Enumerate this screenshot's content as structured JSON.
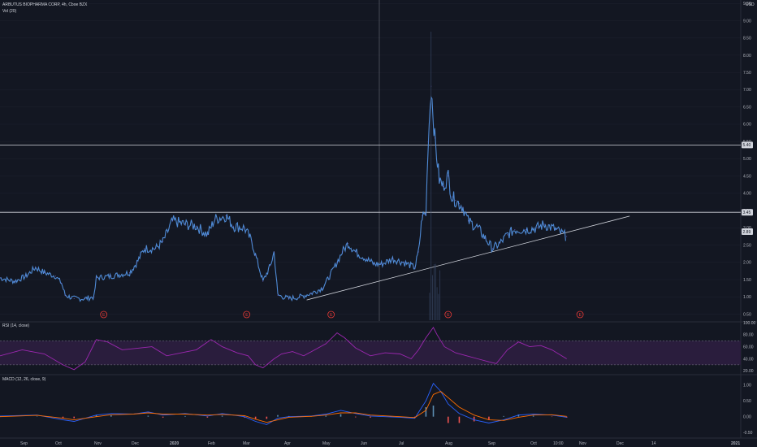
{
  "header": {
    "symbol": "ARBUTUS BIOPHARMA CORP, 4h, Cboe BZX",
    "volume_indicator": "Vol (20)",
    "rsi_indicator": "RSI (14, close)",
    "macd_indicator": "MACD (12, 26, close, 9)"
  },
  "currency_label": "USD",
  "colors": {
    "background": "#131722",
    "grid": "#1e2230",
    "candle": "#4f8bd6",
    "candle_alt": "#7b5fcf",
    "rsi": "#9c27b0",
    "rsi_band": "#2a1d3d",
    "macd_line": "#2962ff",
    "signal_line": "#ff6d00",
    "hist_pos": "#5d8fb3",
    "hist_neg": "#ef5350",
    "horizontal_line": "#d1d4dc",
    "earnings": "#e53935"
  },
  "chart_data": [
    {
      "type": "line",
      "name": "price",
      "ylim": [
        0.3,
        9.6
      ],
      "y_ticks": [
        "9.50",
        "9.00",
        "8.50",
        "8.00",
        "7.50",
        "7.00",
        "6.50",
        "6.00",
        "5.50",
        "5.00",
        "4.50",
        "4.00",
        "3.50",
        "3.00",
        "2.50",
        "2.00",
        "1.50",
        "1.00",
        "0.50"
      ],
      "x_tick_labels": [
        "Sep",
        "Oct",
        "Nov",
        "Dec",
        "2020",
        "Feb",
        "Mar",
        "Apr",
        "May",
        "Jun",
        "Jul",
        "Aug",
        "Sep",
        "Oct",
        "10:00",
        "Nov",
        "Dec",
        "14",
        "2021"
      ],
      "price_labels": [
        "5.40",
        "3.45",
        "2.89"
      ],
      "horizontal_levels": [
        5.4,
        3.45
      ],
      "trendline": [
        [
          0.414,
          0.91
        ],
        [
          0.85,
          3.34
        ]
      ],
      "earnings_marker_label": "E",
      "earnings_positions": [
        0.14,
        0.333,
        0.447,
        0.605,
        0.783
      ],
      "price_series": [
        [
          0.0,
          1.55
        ],
        [
          0.02,
          1.45
        ],
        [
          0.035,
          1.6
        ],
        [
          0.048,
          1.85
        ],
        [
          0.06,
          1.7
        ],
        [
          0.075,
          1.6
        ],
        [
          0.083,
          1.4
        ],
        [
          0.088,
          1.05
        ],
        [
          0.1,
          0.95
        ],
        [
          0.115,
          0.95
        ],
        [
          0.127,
          1.0
        ],
        [
          0.13,
          1.55
        ],
        [
          0.15,
          1.6
        ],
        [
          0.175,
          1.7
        ],
        [
          0.185,
          2.0
        ],
        [
          0.195,
          2.4
        ],
        [
          0.21,
          2.4
        ],
        [
          0.22,
          2.6
        ],
        [
          0.233,
          3.2
        ],
        [
          0.25,
          3.1
        ],
        [
          0.265,
          3.05
        ],
        [
          0.28,
          2.8
        ],
        [
          0.29,
          3.25
        ],
        [
          0.305,
          3.35
        ],
        [
          0.315,
          3.05
        ],
        [
          0.33,
          3.0
        ],
        [
          0.34,
          2.6
        ],
        [
          0.345,
          2.2
        ],
        [
          0.355,
          1.45
        ],
        [
          0.365,
          1.9
        ],
        [
          0.37,
          2.3
        ],
        [
          0.375,
          1.05
        ],
        [
          0.39,
          0.95
        ],
        [
          0.405,
          1.0
        ],
        [
          0.42,
          1.1
        ],
        [
          0.435,
          1.25
        ],
        [
          0.445,
          1.6
        ],
        [
          0.455,
          2.0
        ],
        [
          0.462,
          2.3
        ],
        [
          0.47,
          2.55
        ],
        [
          0.48,
          2.3
        ],
        [
          0.495,
          2.1
        ],
        [
          0.505,
          1.95
        ],
        [
          0.515,
          1.95
        ],
        [
          0.53,
          2.1
        ],
        [
          0.545,
          2.0
        ],
        [
          0.56,
          1.85
        ],
        [
          0.565,
          2.3
        ],
        [
          0.57,
          3.35
        ],
        [
          0.575,
          3.4
        ],
        [
          0.578,
          5.5
        ],
        [
          0.582,
          7.1
        ],
        [
          0.587,
          5.6
        ],
        [
          0.593,
          4.4
        ],
        [
          0.598,
          4.2
        ],
        [
          0.605,
          4.5
        ],
        [
          0.61,
          3.9
        ],
        [
          0.615,
          3.8
        ],
        [
          0.62,
          3.7
        ],
        [
          0.625,
          3.6
        ],
        [
          0.632,
          3.2
        ],
        [
          0.645,
          3.0
        ],
        [
          0.655,
          2.7
        ],
        [
          0.665,
          2.4
        ],
        [
          0.675,
          2.55
        ],
        [
          0.685,
          2.8
        ],
        [
          0.695,
          2.95
        ],
        [
          0.71,
          2.95
        ],
        [
          0.725,
          3.0
        ],
        [
          0.735,
          3.1
        ],
        [
          0.75,
          2.95
        ],
        [
          0.765,
          2.75
        ]
      ]
    },
    {
      "type": "line",
      "name": "RSI",
      "ylim": [
        15,
        100
      ],
      "y_ticks": [
        "100.00",
        "80.00",
        "60.00",
        "40.00",
        "20.00"
      ],
      "bands": [
        70,
        30
      ],
      "series": [
        [
          0.0,
          45
        ],
        [
          0.03,
          55
        ],
        [
          0.06,
          48
        ],
        [
          0.085,
          30
        ],
        [
          0.1,
          22
        ],
        [
          0.115,
          35
        ],
        [
          0.13,
          72
        ],
        [
          0.145,
          68
        ],
        [
          0.165,
          55
        ],
        [
          0.19,
          58
        ],
        [
          0.205,
          60
        ],
        [
          0.225,
          45
        ],
        [
          0.245,
          50
        ],
        [
          0.265,
          55
        ],
        [
          0.285,
          72
        ],
        [
          0.3,
          60
        ],
        [
          0.32,
          50
        ],
        [
          0.335,
          45
        ],
        [
          0.345,
          30
        ],
        [
          0.355,
          25
        ],
        [
          0.37,
          40
        ],
        [
          0.38,
          48
        ],
        [
          0.395,
          52
        ],
        [
          0.41,
          45
        ],
        [
          0.425,
          55
        ],
        [
          0.44,
          65
        ],
        [
          0.455,
          83
        ],
        [
          0.465,
          75
        ],
        [
          0.48,
          58
        ],
        [
          0.5,
          45
        ],
        [
          0.52,
          50
        ],
        [
          0.54,
          48
        ],
        [
          0.555,
          40
        ],
        [
          0.565,
          55
        ],
        [
          0.575,
          75
        ],
        [
          0.585,
          92
        ],
        [
          0.59,
          80
        ],
        [
          0.6,
          60
        ],
        [
          0.615,
          50
        ],
        [
          0.63,
          45
        ],
        [
          0.645,
          40
        ],
        [
          0.66,
          35
        ],
        [
          0.67,
          32
        ],
        [
          0.685,
          55
        ],
        [
          0.7,
          68
        ],
        [
          0.715,
          60
        ],
        [
          0.73,
          62
        ],
        [
          0.745,
          55
        ],
        [
          0.765,
          40
        ]
      ]
    },
    {
      "type": "line",
      "name": "MACD",
      "ylim": [
        -0.65,
        1.3
      ],
      "y_ticks": [
        "1.00",
        "0.50",
        "0.00",
        "-0.50"
      ],
      "macd_series": [
        [
          0.0,
          0.02
        ],
        [
          0.05,
          0.05
        ],
        [
          0.085,
          -0.1
        ],
        [
          0.1,
          -0.15
        ],
        [
          0.13,
          0.05
        ],
        [
          0.15,
          0.1
        ],
        [
          0.18,
          0.08
        ],
        [
          0.2,
          0.15
        ],
        [
          0.22,
          0.05
        ],
        [
          0.25,
          0.1
        ],
        [
          0.28,
          0.02
        ],
        [
          0.3,
          0.1
        ],
        [
          0.33,
          0.0
        ],
        [
          0.345,
          -0.15
        ],
        [
          0.36,
          -0.25
        ],
        [
          0.375,
          -0.05
        ],
        [
          0.39,
          0.0
        ],
        [
          0.42,
          0.02
        ],
        [
          0.44,
          0.08
        ],
        [
          0.46,
          0.2
        ],
        [
          0.48,
          0.1
        ],
        [
          0.5,
          0.02
        ],
        [
          0.54,
          -0.02
        ],
        [
          0.56,
          -0.05
        ],
        [
          0.575,
          0.5
        ],
        [
          0.585,
          1.05
        ],
        [
          0.595,
          0.8
        ],
        [
          0.605,
          0.4
        ],
        [
          0.62,
          0.1
        ],
        [
          0.64,
          -0.1
        ],
        [
          0.66,
          -0.2
        ],
        [
          0.68,
          -0.1
        ],
        [
          0.7,
          0.05
        ],
        [
          0.72,
          0.08
        ],
        [
          0.745,
          0.05
        ],
        [
          0.765,
          -0.02
        ]
      ],
      "signal_series": [
        [
          0.0,
          0.0
        ],
        [
          0.05,
          0.04
        ],
        [
          0.085,
          -0.05
        ],
        [
          0.1,
          -0.1
        ],
        [
          0.13,
          0.0
        ],
        [
          0.15,
          0.06
        ],
        [
          0.18,
          0.08
        ],
        [
          0.2,
          0.12
        ],
        [
          0.22,
          0.08
        ],
        [
          0.25,
          0.08
        ],
        [
          0.28,
          0.05
        ],
        [
          0.3,
          0.07
        ],
        [
          0.33,
          0.03
        ],
        [
          0.345,
          -0.08
        ],
        [
          0.36,
          -0.18
        ],
        [
          0.375,
          -0.1
        ],
        [
          0.39,
          -0.02
        ],
        [
          0.42,
          0.01
        ],
        [
          0.44,
          0.05
        ],
        [
          0.46,
          0.12
        ],
        [
          0.48,
          0.12
        ],
        [
          0.5,
          0.05
        ],
        [
          0.54,
          0.0
        ],
        [
          0.56,
          -0.03
        ],
        [
          0.575,
          0.2
        ],
        [
          0.585,
          0.7
        ],
        [
          0.595,
          0.8
        ],
        [
          0.605,
          0.6
        ],
        [
          0.62,
          0.3
        ],
        [
          0.64,
          0.05
        ],
        [
          0.66,
          -0.1
        ],
        [
          0.68,
          -0.12
        ],
        [
          0.7,
          -0.02
        ],
        [
          0.72,
          0.05
        ],
        [
          0.745,
          0.06
        ],
        [
          0.765,
          0.01
        ]
      ]
    }
  ]
}
